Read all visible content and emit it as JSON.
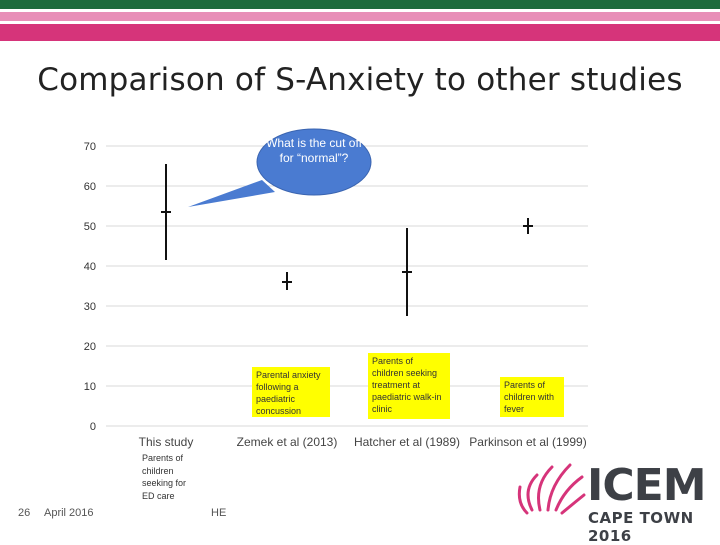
{
  "slide": {
    "title": "Comparison of S-Anxiety to other studies",
    "callout": "What is the cut off for “normal”?",
    "footer_number": "26",
    "footer_date": "April 2016",
    "footer_initials": "HE",
    "logo_main": "ICEM",
    "logo_sub": "CAPE TOWN 2016",
    "colors": {
      "band_top": "#1d6b3c",
      "band_pink_light": "#e88fb8",
      "band_pink": "#d6347a",
      "note_yellow": "#ffff00",
      "callout_blue": "#4a7bd1",
      "logo_pink": "#d6347a",
      "logo_text": "#3d4046"
    }
  },
  "notes": {
    "this_study": "Parents of children seeking for ED care",
    "zemek": "Parental anxiety following a paediatric concussion",
    "hatcher": "Parents of children seeking treatment at paediatric walk-in clinic",
    "parkinson": "Parents of children with fever"
  },
  "chart_data": {
    "type": "errorbar",
    "categories": [
      "This study",
      "Zemek et al (2013)",
      "Hatcher et al (1989)",
      "Parkinson et al (1999)"
    ],
    "ylim": [
      0,
      70
    ],
    "yticks": [
      0,
      10,
      20,
      30,
      40,
      50,
      60,
      70
    ],
    "grid": true,
    "points": [
      {
        "mean": 53.5,
        "low": 41.5,
        "high": 65.5
      },
      {
        "mean": 36,
        "low": 34,
        "high": 38.5
      },
      {
        "mean": 38.5,
        "low": 27.5,
        "high": 49.5
      },
      {
        "mean": 50,
        "low": 48,
        "high": 52
      }
    ]
  }
}
